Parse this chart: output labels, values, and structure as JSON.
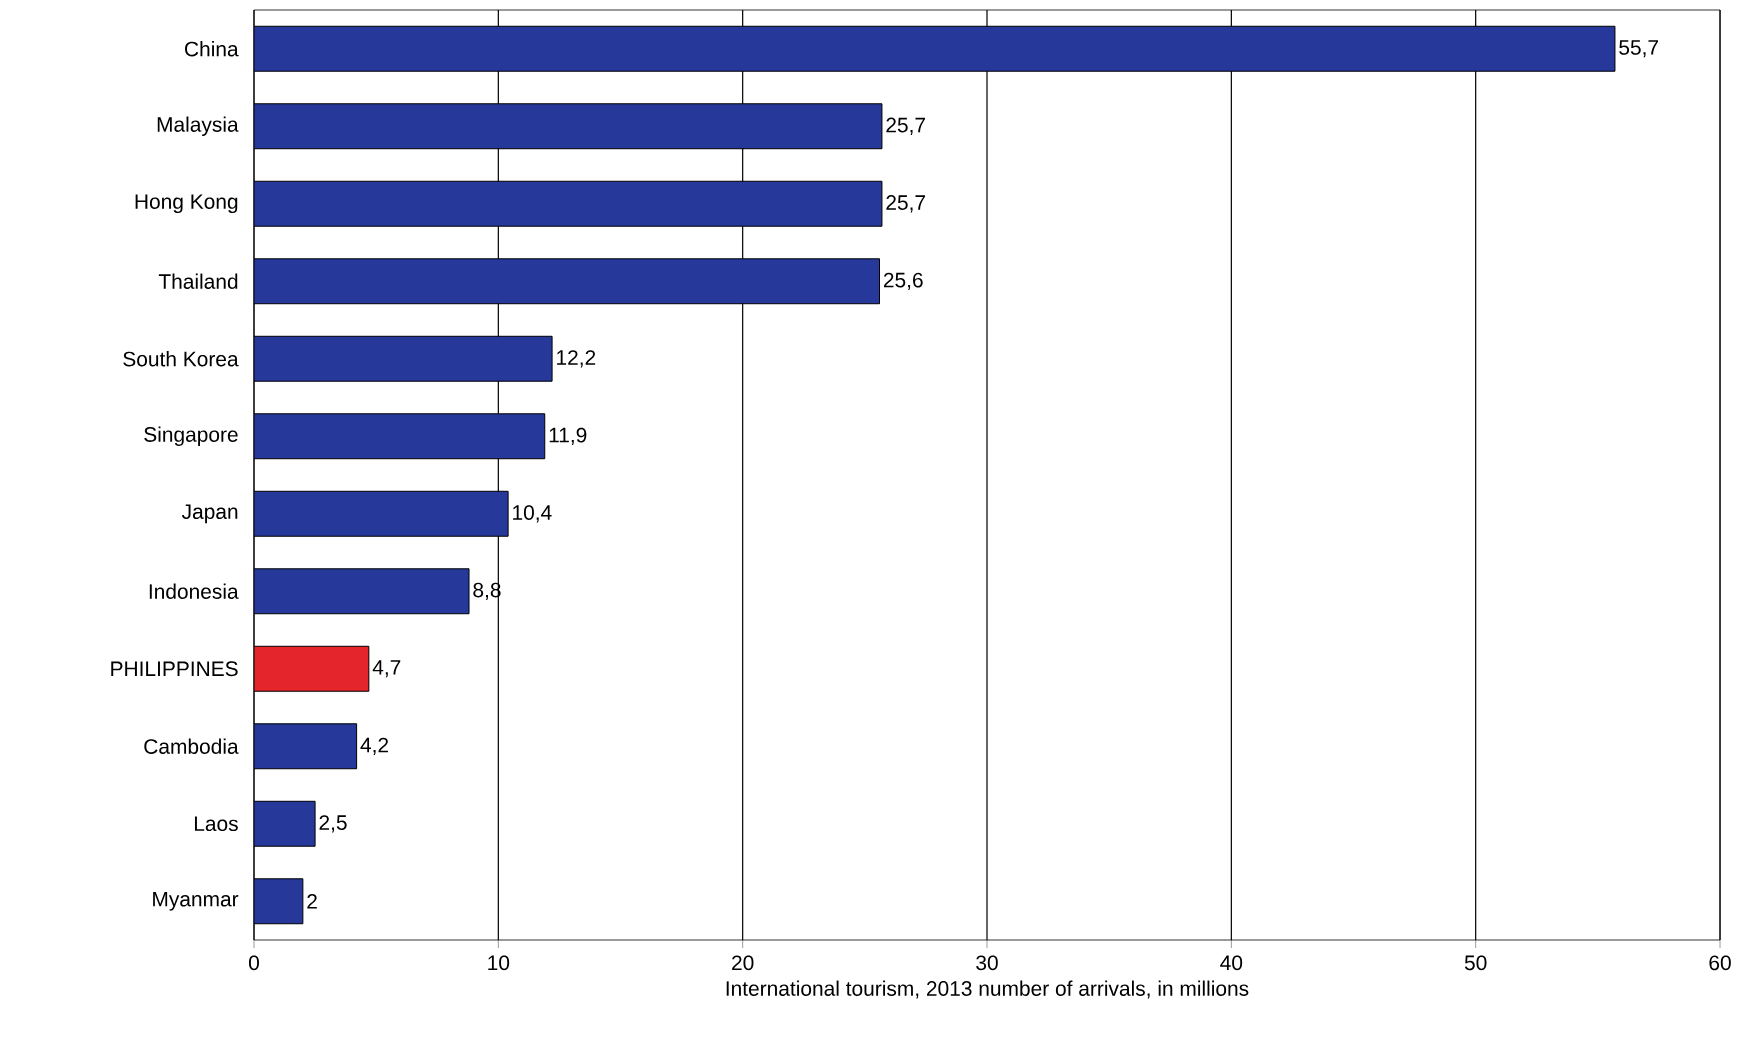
{
  "chart_data": {
    "type": "bar",
    "orientation": "horizontal",
    "xlabel": "International tourism, 2013 number of arrivals, in millions",
    "categories": [
      "China",
      "Malaysia",
      "Hong Kong",
      "Thailand",
      "South Korea",
      "Singapore",
      "Japan",
      "Indonesia",
      "PHILIPPINES",
      "Cambodia",
      "Laos",
      "Myanmar"
    ],
    "values": [
      55.7,
      25.7,
      25.7,
      25.6,
      12.2,
      11.9,
      10.4,
      8.8,
      4.7,
      4.2,
      2.5,
      2
    ],
    "value_labels": [
      "55,7",
      "25,7",
      "25,7",
      "25,6",
      "12,2",
      "11,9",
      "10,4",
      "8,8",
      "4,7",
      "4,2",
      "2,5",
      "2"
    ],
    "colors": [
      "#26389a",
      "#26389a",
      "#26389a",
      "#26389a",
      "#26389a",
      "#26389a",
      "#26389a",
      "#26389a",
      "#e4262c",
      "#26389a",
      "#26389a",
      "#26389a"
    ],
    "xlim": [
      0,
      60
    ],
    "xticks": [
      0,
      10,
      20,
      30,
      40,
      50,
      60
    ],
    "grid": "x"
  }
}
